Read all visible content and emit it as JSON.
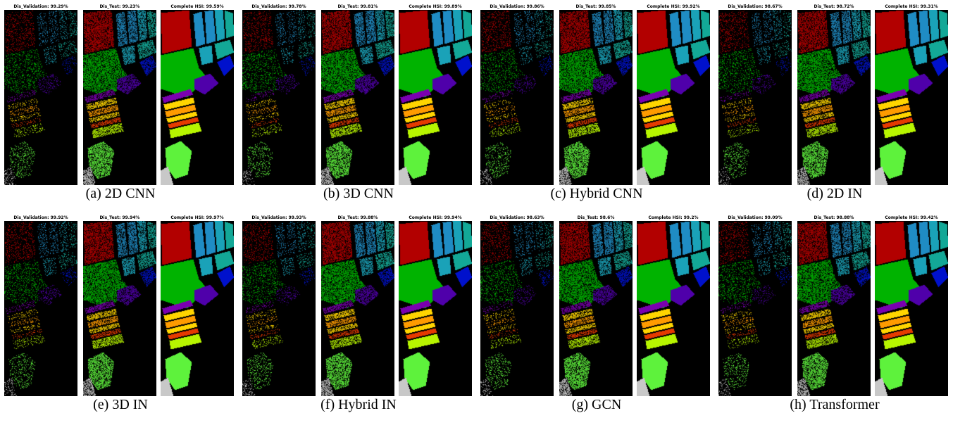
{
  "figure": {
    "class_colors": [
      "#b20000",
      "#1f8cc4",
      "#1aa2b8",
      "#13a897",
      "#00b300",
      "#0011cc",
      "#4f00aa",
      "#7a00b0",
      "#ffd500",
      "#ff9b00",
      "#e63a00",
      "#b7f500",
      "#5ef23c",
      "#00ea3a",
      "#c8c8c8"
    ],
    "panels": [
      {
        "caption": "(a) 2D CNN",
        "maps": [
          {
            "title": "Dis_Validation: 99.29%",
            "kind": "validation"
          },
          {
            "title": "Dis_Test: 99.23%",
            "kind": "test"
          },
          {
            "title": "Complete HSI: 99.59%",
            "kind": "complete"
          }
        ]
      },
      {
        "caption": "(b) 3D CNN",
        "maps": [
          {
            "title": "Dis_Validation: 99.78%",
            "kind": "validation"
          },
          {
            "title": "Dis_Test: 99.81%",
            "kind": "test"
          },
          {
            "title": "Complete HSI: 99.89%",
            "kind": "complete"
          }
        ]
      },
      {
        "caption": "(c) Hybrid CNN",
        "maps": [
          {
            "title": "Dis_Validation: 99.86%",
            "kind": "validation"
          },
          {
            "title": "Dis_Test: 99.85%",
            "kind": "test"
          },
          {
            "title": "Complete HSI: 99.92%",
            "kind": "complete"
          }
        ]
      },
      {
        "caption": "(d) 2D IN",
        "maps": [
          {
            "title": "Dis_Validation: 98.67%",
            "kind": "validation"
          },
          {
            "title": "Dis_Test: 98.72%",
            "kind": "test"
          },
          {
            "title": "Complete HSI: 99.31%",
            "kind": "complete"
          }
        ]
      },
      {
        "caption": "(e) 3D IN",
        "maps": [
          {
            "title": "Dis_Validation: 99.92%",
            "kind": "validation"
          },
          {
            "title": "Dis_Test: 99.94%",
            "kind": "test"
          },
          {
            "title": "Complete HSI: 99.97%",
            "kind": "complete"
          }
        ]
      },
      {
        "caption": "(f) Hybrid IN",
        "maps": [
          {
            "title": "Dis_Validation: 99.93%",
            "kind": "validation"
          },
          {
            "title": "Dis_Test: 99.88%",
            "kind": "test"
          },
          {
            "title": "Complete HSI: 99.94%",
            "kind": "complete"
          }
        ]
      },
      {
        "caption": "(g) GCN",
        "maps": [
          {
            "title": "Dis_Validation: 98.63%",
            "kind": "validation"
          },
          {
            "title": "Dis_Test: 98.6%",
            "kind": "test"
          },
          {
            "title": "Complete HSI: 99.2%",
            "kind": "complete"
          }
        ]
      },
      {
        "caption": "(h) Transformer",
        "maps": [
          {
            "title": "Dis_Validation: 99.09%",
            "kind": "validation"
          },
          {
            "title": "Dis_Test: 98.88%",
            "kind": "test"
          },
          {
            "title": "Complete HSI: 99.42%",
            "kind": "complete"
          }
        ]
      }
    ]
  }
}
